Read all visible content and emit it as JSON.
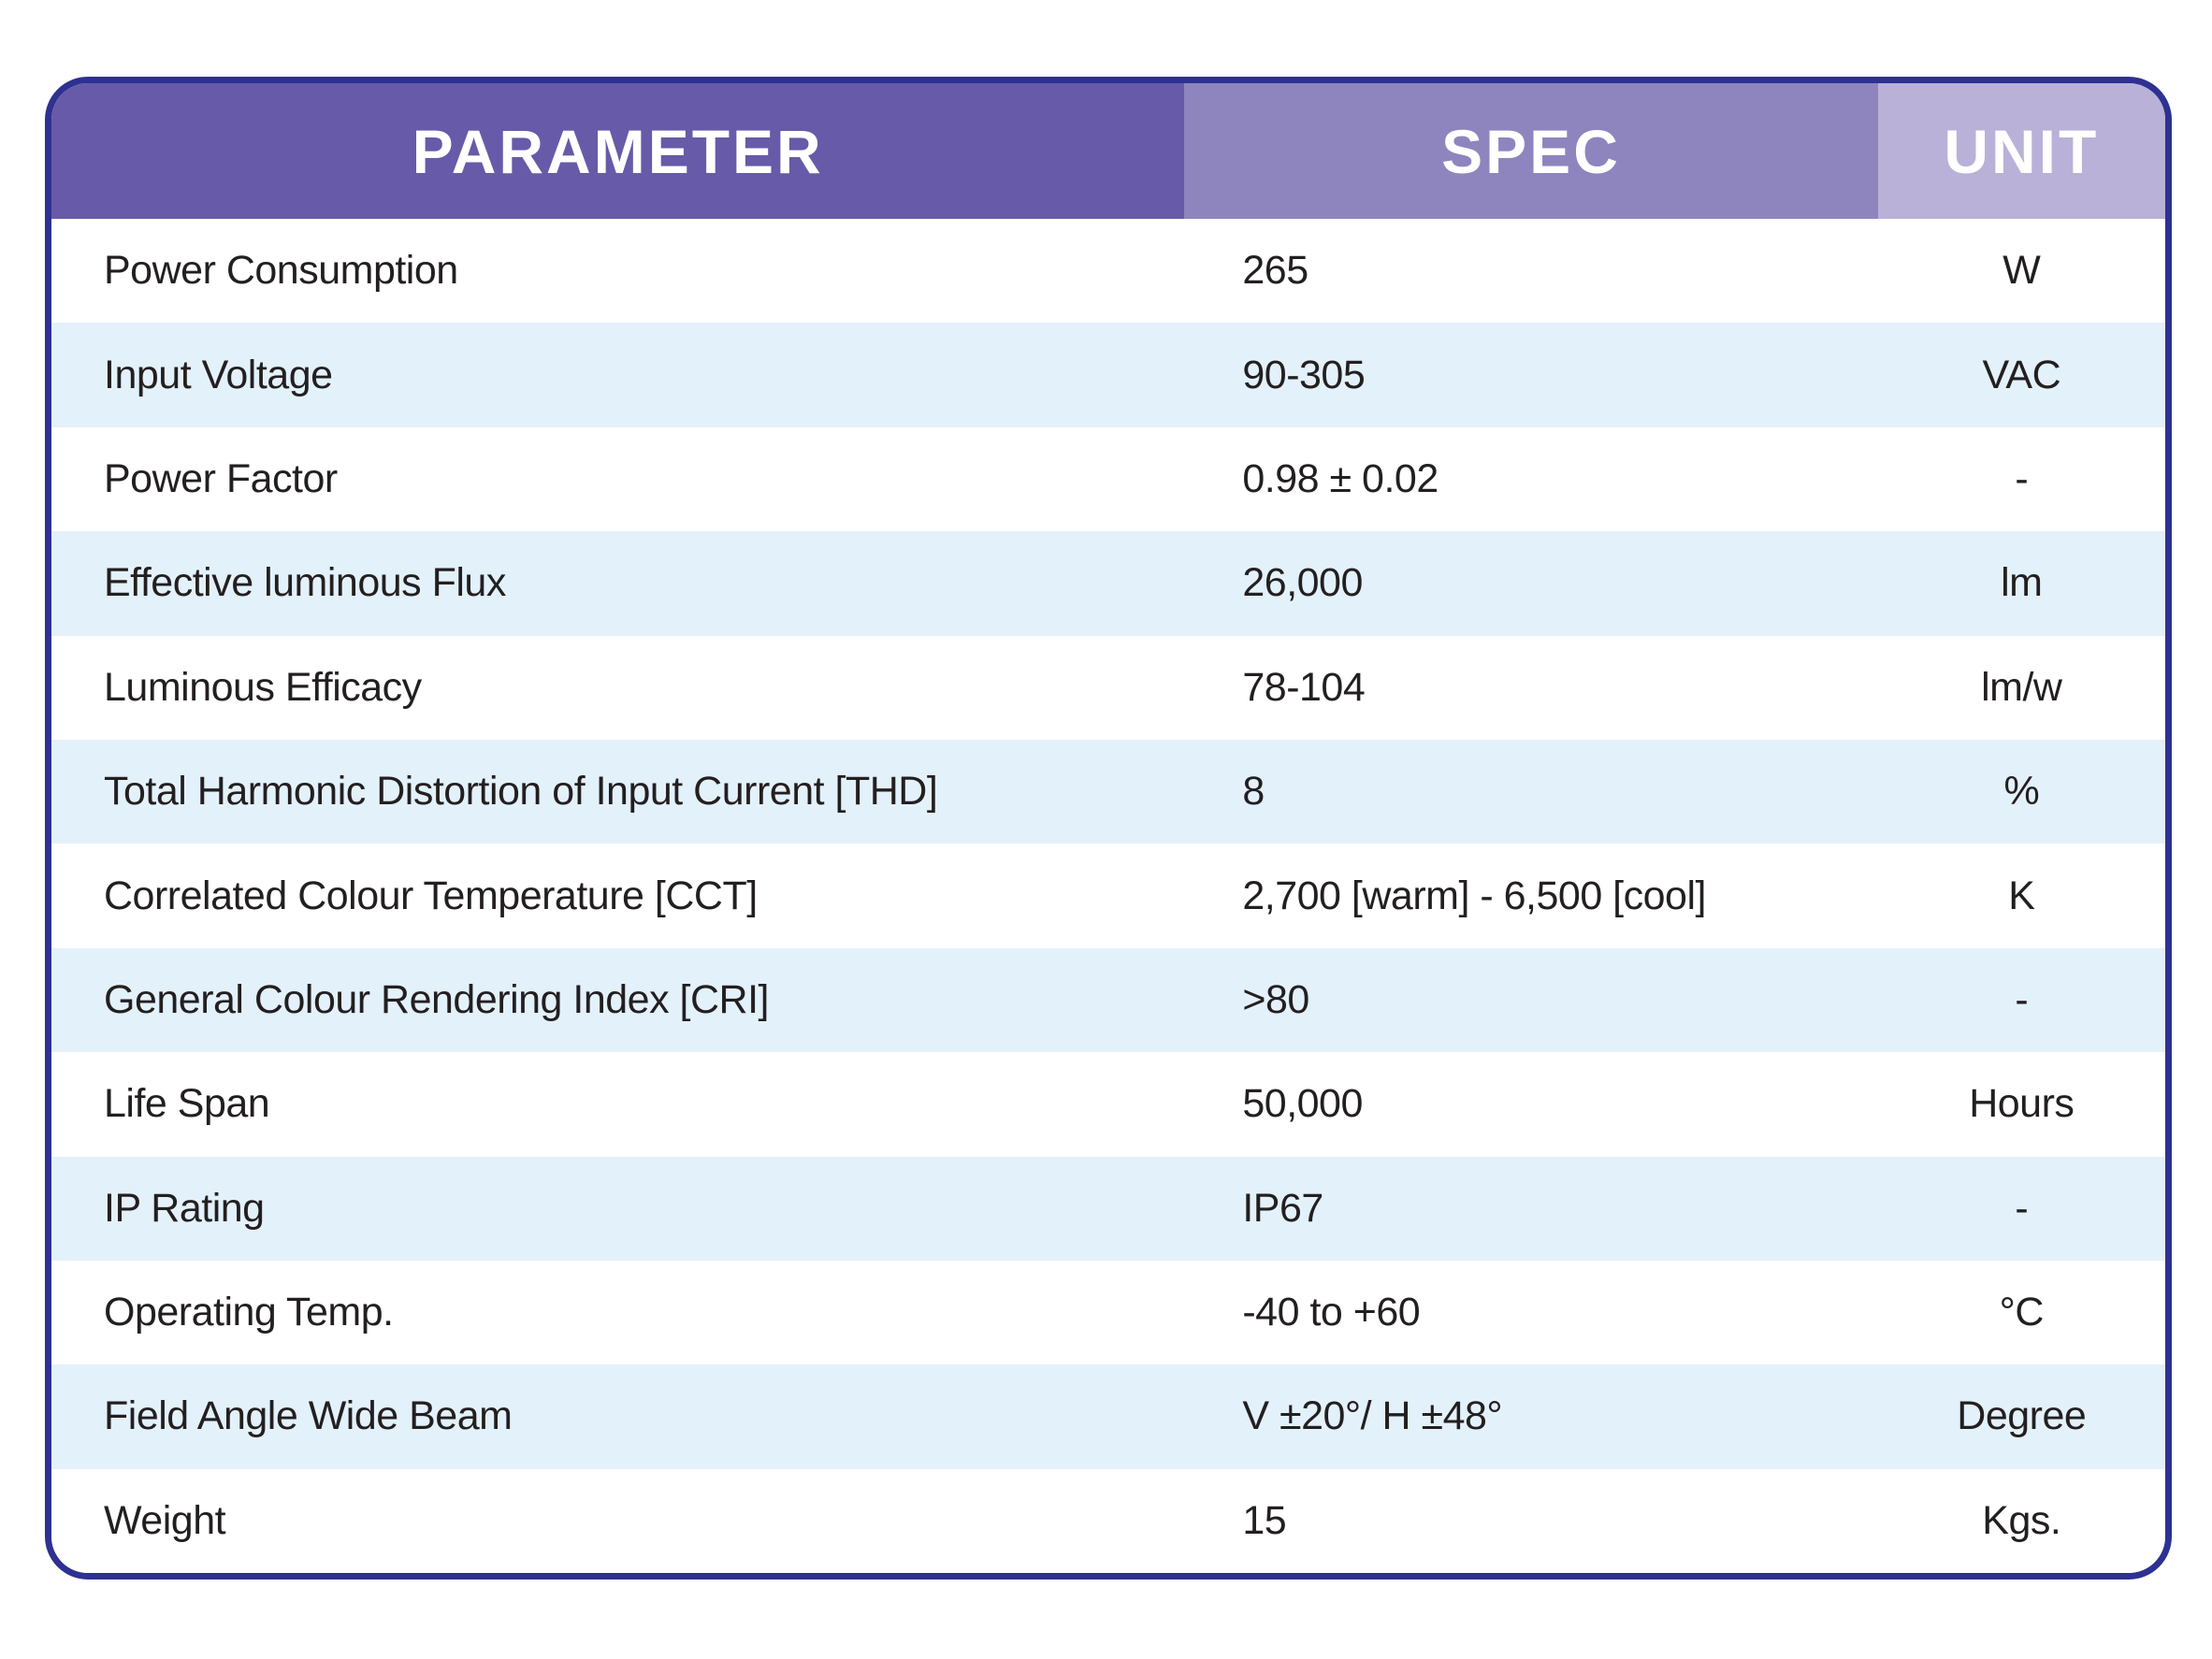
{
  "table": {
    "headers": {
      "parameter": "PARAMETER",
      "spec": "SPEC",
      "unit": "UNIT"
    },
    "rows": [
      {
        "param": "Power Consumption",
        "spec": "265",
        "unit": "W"
      },
      {
        "param": "Input Voltage",
        "spec": "90-305",
        "unit": "VAC"
      },
      {
        "param": "Power Factor",
        "spec": "0.98 ± 0.02",
        "unit": "-"
      },
      {
        "param": "Effective luminous Flux",
        "spec": "26,000",
        "unit": "lm"
      },
      {
        "param": "Luminous Efficacy",
        "spec": "78-104",
        "unit": "lm/w"
      },
      {
        "param": "Total Harmonic Distortion of Input Current [THD]",
        "spec": "8",
        "unit": "%"
      },
      {
        "param": "Correlated Colour Temperature [CCT]",
        "spec": "2,700 [warm] - 6,500 [cool]",
        "unit": "K"
      },
      {
        "param": "General Colour Rendering Index [CRI]",
        "spec": ">80",
        "unit": "-"
      },
      {
        "param": "Life Span",
        "spec": "50,000",
        "unit": "Hours"
      },
      {
        "param": "IP Rating",
        "spec": "IP67",
        "unit": "-"
      },
      {
        "param": "Operating Temp.",
        "spec": "-40 to +60",
        "unit": "°C"
      },
      {
        "param": "Field Angle Wide Beam",
        "spec": "V ±20°/ H ±48°",
        "unit": "Degree"
      },
      {
        "param": "Weight",
        "spec": "15",
        "unit": "Kgs."
      }
    ],
    "colors": {
      "border": "#2e3192",
      "header_parameter_bg": "#675aa8",
      "header_spec_bg": "#8e85bf",
      "header_unit_bg": "#b9b1d7",
      "header_text": "#ffffff",
      "row_bg": "#ffffff",
      "row_alt_bg": "#e3f1fb",
      "text": "#231f20"
    }
  }
}
